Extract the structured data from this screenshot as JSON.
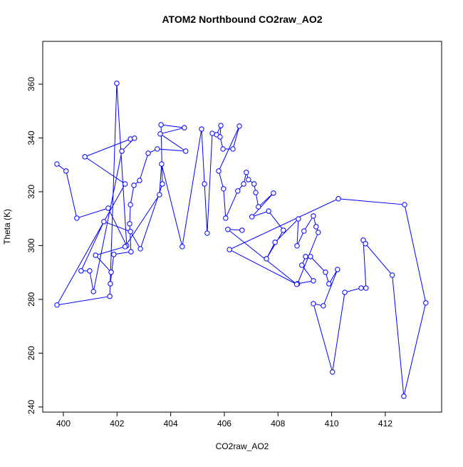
{
  "chart_data": {
    "type": "line",
    "title": "ATOM2 Northbound CO2raw_AO2",
    "xlabel": "CO2raw_AO2",
    "ylabel": "Theta (K)",
    "color": "#0000ff",
    "markers": true,
    "x": [
      399.76,
      400.1,
      400.5,
      401.67,
      402.36,
      401.99,
      401.73,
      399.76,
      402.3,
      400.8,
      402.5,
      402.65,
      402.18,
      401.12,
      400.98,
      400.66,
      401.51,
      402.5,
      402.87,
      403.69,
      403.64,
      404.51,
      403.61,
      404.56,
      403.5,
      403.16,
      402.84,
      402.63,
      402.5,
      402.47,
      402.52,
      401.88,
      401.75,
      401.78,
      401.2,
      402.3,
      403.58,
      403.66,
      404.43,
      405.15,
      405.26,
      405.36,
      405.55,
      405.71,
      405.87,
      405.84,
      405.95,
      406.32,
      406.56,
      405.79,
      405.97,
      406.05,
      406.5,
      406.72,
      406.82,
      406.9,
      407.11,
      407.17,
      407.27,
      407.83,
      407.03,
      407.65,
      408.2,
      407.57,
      407.89,
      408.76,
      408.71,
      408.97,
      409.32,
      409.42,
      409.5,
      408.73,
      409.32,
      408.89,
      409.03,
      409.21,
      409.77,
      409.9,
      410.22,
      409.69,
      409.32,
      410.03,
      410.49,
      411.1,
      411.28,
      411.18,
      411.26,
      412.26,
      412.69,
      413.51,
      412.72,
      410.25,
      406.19,
      408.7,
      406.13,
      406.66
    ],
    "values": [
      330.3,
      327.7,
      310.2,
      313.9,
      299.9,
      360.3,
      281.1,
      277.9,
      322.9,
      333.0,
      339.6,
      339.9,
      335.1,
      282.9,
      290.6,
      290.6,
      308.9,
      305.2,
      298.8,
      322.9,
      344.9,
      343.8,
      341.5,
      335.1,
      335.9,
      334.3,
      324.2,
      322.4,
      315.2,
      308.1,
      297.7,
      296.7,
      285.8,
      290.1,
      296.4,
      299.6,
      318.9,
      330.3,
      299.6,
      343.3,
      322.9,
      304.6,
      341.7,
      341.2,
      344.6,
      340.4,
      335.9,
      335.9,
      344.4,
      327.7,
      321.1,
      310.2,
      320.3,
      322.9,
      327.2,
      324.5,
      322.9,
      319.7,
      314.4,
      319.5,
      310.7,
      312.8,
      305.7,
      295.1,
      301.2,
      309.9,
      299.9,
      305.4,
      311.0,
      307.0,
      304.9,
      285.8,
      286.9,
      292.7,
      295.9,
      295.9,
      290.1,
      285.8,
      291.1,
      277.6,
      278.4,
      253.0,
      282.6,
      284.2,
      284.2,
      302.0,
      300.7,
      289.0,
      244.0,
      278.7,
      315.2,
      317.4,
      298.5,
      285.6,
      306.0,
      305.7
    ],
    "xlim": [
      399.23,
      414.1
    ],
    "ylim": [
      238.1,
      375.9
    ],
    "xticks": [
      400,
      402,
      404,
      406,
      408,
      410,
      412
    ],
    "yticks": [
      240,
      260,
      280,
      300,
      320,
      340,
      360
    ]
  }
}
